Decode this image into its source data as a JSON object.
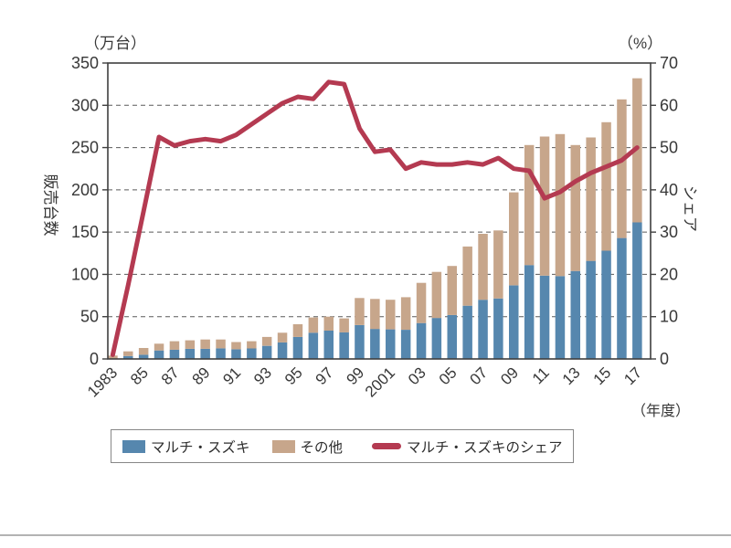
{
  "page": {
    "left_unit": "（万台）",
    "right_unit": "（%）",
    "y_left_title": "販売台数",
    "y_right_title": "シェア",
    "x_axis_note": "（年度）"
  },
  "legend": {
    "maruti": "マルチ・スズキ",
    "others": "その他",
    "share": "マルチ・スズキのシェア"
  },
  "colors": {
    "maruti_bar": "#5687ae",
    "others_bar": "#c7a68b",
    "share_line": "#b43a51",
    "axis": "#3f3f3f",
    "grid": "#5a5a5a",
    "text": "#383838"
  },
  "chart_data": {
    "type": "bar",
    "subtype": "stacked-bars-with-line-overlay",
    "title": "",
    "x_axis_label": "（年度）",
    "grid": "dashed horizontal gridlines",
    "legend_position": "bottom",
    "x": [
      1983,
      1984,
      1985,
      1986,
      1987,
      1988,
      1989,
      1990,
      1991,
      1992,
      1993,
      1994,
      1995,
      1996,
      1997,
      1998,
      1999,
      2000,
      2001,
      2002,
      2003,
      2004,
      2005,
      2006,
      2007,
      2008,
      2009,
      2010,
      2011,
      2012,
      2013,
      2014,
      2015,
      2016,
      2017
    ],
    "x_tick_labels": [
      "1983",
      "",
      "85",
      "",
      "87",
      "",
      "89",
      "",
      "91",
      "",
      "93",
      "",
      "95",
      "",
      "97",
      "",
      "99",
      "",
      "2001",
      "",
      "03",
      "",
      "05",
      "",
      "07",
      "",
      "09",
      "",
      "11",
      "",
      "13",
      "",
      "15",
      "",
      "17"
    ],
    "left_axis": {
      "label": "販売台数",
      "unit": "（万台）",
      "min": 0,
      "max": 350,
      "tick_step": 50
    },
    "right_axis": {
      "label": "シェア",
      "unit": "（%）",
      "min": 0,
      "max": 70,
      "tick_step": 10
    },
    "series": [
      {
        "name": "マルチ・スズキ",
        "type": "bar",
        "stack": "sales",
        "axis": "left",
        "color": "#5687ae",
        "values": [
          0.5,
          3.5,
          5,
          10,
          11,
          12,
          12,
          12.5,
          11.5,
          12.5,
          15.5,
          19.5,
          26,
          31,
          33.5,
          31.5,
          40,
          35.5,
          35,
          34.5,
          42.5,
          48.5,
          52,
          63,
          70,
          71.5,
          87,
          111,
          98.5,
          98,
          104,
          116,
          128,
          143,
          161.5
        ]
      },
      {
        "name": "その他",
        "type": "bar",
        "stack": "sales",
        "axis": "left",
        "color": "#c7a68b",
        "values": [
          3.5,
          5.5,
          8,
          8,
          10,
          10,
          11,
          10.5,
          8.5,
          8.5,
          10.5,
          11.5,
          15,
          18,
          16.5,
          16.5,
          32,
          35.5,
          35,
          38.5,
          47.5,
          54.5,
          58,
          70,
          78,
          80.5,
          110,
          142,
          164.5,
          168,
          149,
          146,
          152,
          164,
          170.5
        ]
      },
      {
        "name": "マルチ・スズキのシェア",
        "type": "line",
        "axis": "right",
        "color": "#b43a51",
        "values": [
          1,
          17.5,
          35,
          52.5,
          50.5,
          51.5,
          52,
          51.5,
          53,
          55.5,
          58,
          60.5,
          62,
          61.5,
          65.5,
          65,
          54.5,
          49,
          49.5,
          45,
          46.5,
          46,
          46,
          46.5,
          46,
          47.5,
          45,
          44.5,
          38,
          39.5,
          42,
          44,
          45.5,
          47,
          50
        ]
      }
    ]
  }
}
